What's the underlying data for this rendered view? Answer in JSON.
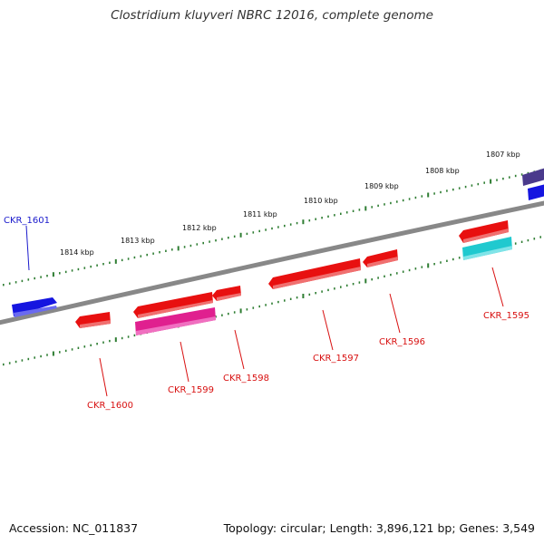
{
  "title": "Clostridium kluyveri NBRC 12016, complete genome",
  "footer": {
    "accession": "Accession: NC_011837",
    "topology": "Topology: circular; Length: 3,896,121 bp; Genes: 3,549"
  },
  "colors": {
    "backbone": "#888888",
    "tick": "#2e7d32",
    "forward_gene": "#1515e0",
    "reverse_gene": "#e81010",
    "rna_magenta": "#e0208f",
    "rna_cyan": "#20c9cf",
    "rna_purple": "#4a3a8c",
    "label_forward": "#1a1acc",
    "label_reverse": "#d81010"
  },
  "scale_labels": [
    {
      "text": "1814 kbp"
    },
    {
      "text": "1813 kbp"
    },
    {
      "text": "1812 kbp"
    },
    {
      "text": "1811 kbp"
    },
    {
      "text": "1810 kbp"
    },
    {
      "text": "1809 kbp"
    },
    {
      "text": "1808 kbp"
    },
    {
      "text": "1807 kbp"
    }
  ],
  "genes": [
    {
      "name": "CKR_1601",
      "strand": "forward",
      "color_key": "forward_gene"
    },
    {
      "name": "CKR_1600",
      "strand": "reverse",
      "color_key": "reverse_gene"
    },
    {
      "name": "CKR_1599",
      "strand": "reverse",
      "color_key": "reverse_gene"
    },
    {
      "name": "CKR_1598",
      "strand": "reverse",
      "color_key": "reverse_gene"
    },
    {
      "name": "CKR_1597",
      "strand": "reverse",
      "color_key": "reverse_gene"
    },
    {
      "name": "CKR_1596",
      "strand": "reverse",
      "color_key": "reverse_gene"
    },
    {
      "name": "CKR_1595",
      "strand": "reverse",
      "color_key": "reverse_gene"
    }
  ]
}
